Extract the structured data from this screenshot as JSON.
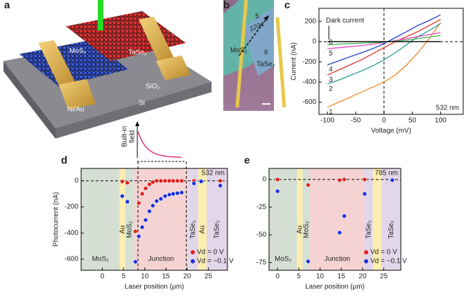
{
  "panel_labels": [
    "a",
    "b",
    "c",
    "d",
    "e"
  ],
  "illustration": {
    "mos2": "MoS₂",
    "tase2": "TaSe₂",
    "contact": "Ni/Au",
    "oxide": "SiO₂",
    "substrate": "Si"
  },
  "micrograph": {
    "mos2": "MoS₂",
    "tase2": "TaSe₂",
    "spots": [
      "1",
      "2",
      "3",
      "4",
      "5",
      "6"
    ]
  },
  "inset": {
    "ylabel": [
      "Built-in",
      "field"
    ]
  },
  "chart_data": [
    {
      "type": "line",
      "xlabel": "Voltage (mV)",
      "ylabel": "Current (nA)",
      "annotation": "532 nm",
      "xlim": [
        -115,
        140
      ],
      "xticks": [
        -100,
        -50,
        0,
        50,
        100
      ],
      "ylim": [
        -720,
        330
      ],
      "yticks": [
        -600,
        -400,
        -200,
        0,
        200
      ],
      "x": [
        -100,
        -80,
        -60,
        -40,
        -20,
        0,
        20,
        40,
        60,
        80,
        100
      ],
      "series": [
        {
          "name": "1",
          "color": "#f08a24",
          "values": [
            -650,
            -600,
            -550,
            -500,
            -450,
            -400,
            -330,
            -230,
            -110,
            30,
            190
          ]
        },
        {
          "name": "2",
          "color": "#2a9d8f",
          "values": [
            -420,
            -380,
            -335,
            -290,
            -240,
            -180,
            -110,
            -30,
            50,
            110,
            180
          ]
        },
        {
          "name": "3",
          "color": "#e0302a",
          "values": [
            -330,
            -280,
            -230,
            -180,
            -120,
            -60,
            0,
            50,
            100,
            160,
            220
          ]
        },
        {
          "name": "4",
          "color": "#1f3fd6",
          "values": [
            -230,
            -190,
            -150,
            -110,
            -70,
            -20,
            40,
            100,
            160,
            210,
            265
          ]
        },
        {
          "name": "5",
          "color": "#e040c8",
          "values": [
            -70,
            -60,
            -50,
            -40,
            -25,
            -10,
            10,
            30,
            50,
            70,
            90
          ]
        },
        {
          "name": "6",
          "color": "#3cb44b",
          "values": [
            -30,
            -25,
            -20,
            -15,
            -10,
            -5,
            5,
            15,
            30,
            45,
            60
          ]
        },
        {
          "name": "Dark current",
          "color": "#000000",
          "values": [
            0,
            0,
            0,
            0,
            0,
            0,
            0,
            0,
            0,
            0,
            0
          ]
        }
      ]
    },
    {
      "type": "scatter",
      "xlabel": "Laser position (μm)",
      "ylabel": "Photocurrent (nA)",
      "annotation": "532 nm",
      "xlim": [
        -5,
        29.5
      ],
      "xticks": [
        0,
        5,
        10,
        15,
        20,
        25
      ],
      "ylim": [
        -685,
        95
      ],
      "yticks": [
        -600,
        -400,
        -200,
        0
      ],
      "markers_x": [
        8.4,
        19.8
      ],
      "regions": [
        {
          "label": "MoS₂",
          "start": -5,
          "end": 4.1,
          "color": "#d5dfd3"
        },
        {
          "label": "Au",
          "start": 4.1,
          "end": 5.4,
          "color": "#fbeeb0"
        },
        {
          "label": "MoS₂",
          "start": 5.4,
          "end": 7.5,
          "color": "#d5dfd3"
        },
        {
          "label": "Junction",
          "start": 7.5,
          "end": 20.2,
          "color": "#f5d3d3"
        },
        {
          "label": "TaSe₂",
          "start": 20.2,
          "end": 22.6,
          "color": "#e2d6ea"
        },
        {
          "label": "Au",
          "start": 22.6,
          "end": 24.6,
          "color": "#fbeeb0"
        },
        {
          "label": "TaSe₂",
          "start": 24.6,
          "end": 29.5,
          "color": "#e2d6ea"
        }
      ],
      "x": [
        4.7,
        5.9,
        7.8,
        8.6,
        9.4,
        10.2,
        11.1,
        11.9,
        12.8,
        13.8,
        14.8,
        15.8,
        16.7,
        17.7,
        18.7,
        21.6,
        23.3,
        27.8
      ],
      "series": [
        {
          "name": "Vd = 0 V",
          "color": "#e0201a",
          "values": [
            -5,
            -15,
            -387,
            -170,
            -100,
            -58,
            -27,
            -10,
            0,
            0,
            0,
            0,
            0,
            0,
            0,
            0,
            0,
            0
          ]
        },
        {
          "name": "Vd = −0.1 V",
          "color": "#1a2fe0",
          "values": [
            -117,
            -160,
            -620,
            -425,
            -355,
            -300,
            -233,
            -190,
            -155,
            -138,
            -117,
            -106,
            -100,
            -95,
            -90,
            -20,
            -5,
            -37
          ]
        }
      ]
    },
    {
      "type": "scatter",
      "xlabel": "Laser position (μm)",
      "annotation": "785 nm",
      "xlim": [
        -2,
        29
      ],
      "xticks": [
        0,
        5,
        10,
        15,
        20,
        25
      ],
      "ylim": [
        -82,
        10
      ],
      "yticks": [
        -75,
        -50,
        -25,
        0
      ],
      "regions": [
        {
          "label": "MoS₂",
          "start": -2,
          "end": 4.6,
          "color": "#d5dfd3"
        },
        {
          "label": "Au",
          "start": 4.6,
          "end": 5.9,
          "color": "#fbeeb0"
        },
        {
          "label": "MoS₂",
          "start": 5.9,
          "end": 7.6,
          "color": "#d5dfd3"
        },
        {
          "label": "Junction",
          "start": 7.6,
          "end": 20.5,
          "color": "#f5d3d3"
        },
        {
          "label": "TaSe₂",
          "start": 20.5,
          "end": 22.4,
          "color": "#e2d6ea"
        },
        {
          "start": 22.4,
          "end": 24.5,
          "color": "#fbeeb0"
        },
        {
          "label": "TaSe₂",
          "start": 24.5,
          "end": 29,
          "color": "#e2d6ea"
        }
      ],
      "x": [
        0,
        7.2,
        14.6,
        15.7,
        20.5,
        27
      ],
      "series": [
        {
          "name": "Vd = 0 V",
          "color": "#e0201a",
          "values": [
            0,
            -5,
            -0.6,
            0,
            0,
            -0.6
          ]
        },
        {
          "name": "Vd = −0.1 V",
          "color": "#1a2fe0",
          "values": [
            -10.6,
            -74,
            -48,
            -33,
            -13,
            -0.6
          ]
        }
      ]
    }
  ]
}
